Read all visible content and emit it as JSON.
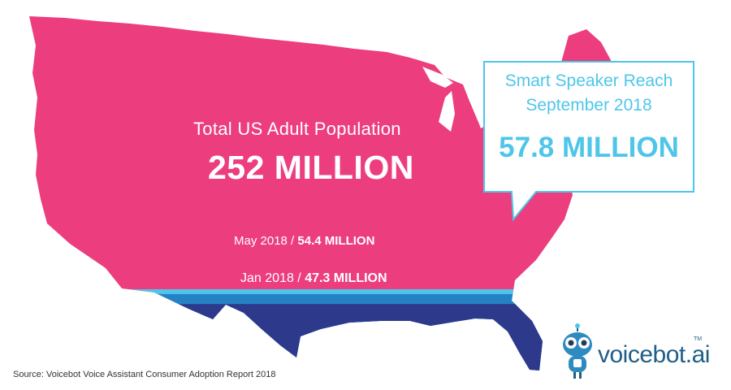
{
  "chart_data": {
    "type": "map-bands",
    "title": "Smart Speaker Reach",
    "total": {
      "label": "Total US Adult Population",
      "value_text": "252 MILLION",
      "value_millions": 252
    },
    "series": [
      {
        "name": "Jan 2018",
        "value_millions": 47.3,
        "label": "Jan 2018",
        "value_text": "47.3 MILLION",
        "color": "#2d3a8c"
      },
      {
        "name": "May 2018",
        "value_millions": 54.4,
        "label": "May 2018",
        "value_text": "54.4 MILLION",
        "color": "#2482c4"
      },
      {
        "name": "September 2018",
        "value_millions": 57.8,
        "label": "September 2018",
        "value_text": "57.8 MILLION",
        "color": "#4ec6ea"
      }
    ],
    "remaining_color": "#ec3d7e",
    "separator": " / "
  },
  "callout": {
    "line1": "Smart Speaker Reach",
    "line2": "September 2018",
    "value": "57.8 MILLION"
  },
  "source": "Source: Voicebot Voice Assistant Consumer Adoption Report 2018",
  "logo": {
    "text": "voicebot",
    "suffix": ".ai",
    "tm": "TM"
  }
}
